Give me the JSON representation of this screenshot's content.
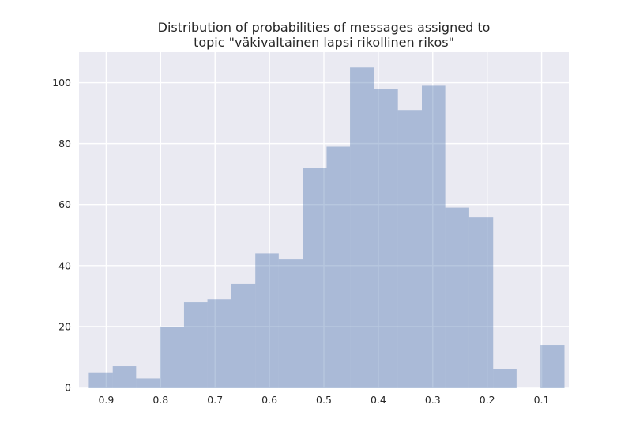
{
  "chart_data": {
    "type": "bar",
    "title_lines": [
      "Distribution of probabilities of messages assigned to",
      "topic \"väkivaltainen lapsi rikollinen rikos\""
    ],
    "xlabel": "",
    "ylabel": "",
    "x_axis_inverted": true,
    "xlim": [
      0.95,
      0.05
    ],
    "ylim": [
      0,
      110
    ],
    "grid": true,
    "x_ticks": [
      0.9,
      0.8,
      0.7,
      0.6,
      0.5,
      0.4,
      0.3,
      0.2,
      0.1
    ],
    "x_tick_labels": [
      "0.9",
      "0.8",
      "0.7",
      "0.6",
      "0.5",
      "0.4",
      "0.3",
      "0.2",
      "0.1"
    ],
    "y_ticks": [
      0,
      20,
      40,
      60,
      80,
      100
    ],
    "y_tick_labels": [
      "0",
      "20",
      "40",
      "60",
      "80",
      "100"
    ],
    "bin_width": 0.0437,
    "bins": [
      {
        "x_start": 0.932,
        "x_end": 0.888,
        "count": 5
      },
      {
        "x_start": 0.888,
        "x_end": 0.845,
        "count": 7
      },
      {
        "x_start": 0.845,
        "x_end": 0.801,
        "count": 3
      },
      {
        "x_start": 0.801,
        "x_end": 0.757,
        "count": 20
      },
      {
        "x_start": 0.757,
        "x_end": 0.714,
        "count": 28
      },
      {
        "x_start": 0.714,
        "x_end": 0.67,
        "count": 29
      },
      {
        "x_start": 0.67,
        "x_end": 0.626,
        "count": 34
      },
      {
        "x_start": 0.626,
        "x_end": 0.583,
        "count": 44
      },
      {
        "x_start": 0.583,
        "x_end": 0.539,
        "count": 42
      },
      {
        "x_start": 0.539,
        "x_end": 0.495,
        "count": 72
      },
      {
        "x_start": 0.495,
        "x_end": 0.452,
        "count": 79
      },
      {
        "x_start": 0.452,
        "x_end": 0.408,
        "count": 105
      },
      {
        "x_start": 0.408,
        "x_end": 0.364,
        "count": 98
      },
      {
        "x_start": 0.364,
        "x_end": 0.32,
        "count": 91
      },
      {
        "x_start": 0.32,
        "x_end": 0.277,
        "count": 99
      },
      {
        "x_start": 0.277,
        "x_end": 0.233,
        "count": 59
      },
      {
        "x_start": 0.233,
        "x_end": 0.189,
        "count": 56
      },
      {
        "x_start": 0.189,
        "x_end": 0.146,
        "count": 6
      },
      {
        "x_start": 0.146,
        "x_end": 0.102,
        "count": 0
      },
      {
        "x_start": 0.102,
        "x_end": 0.058,
        "count": 14
      }
    ],
    "colors": {
      "plot_background": "#EAEAF2",
      "grid": "#FFFFFF",
      "bar_fill": "#4C72B0",
      "bar_opacity": 0.4,
      "text": "#262626"
    }
  }
}
